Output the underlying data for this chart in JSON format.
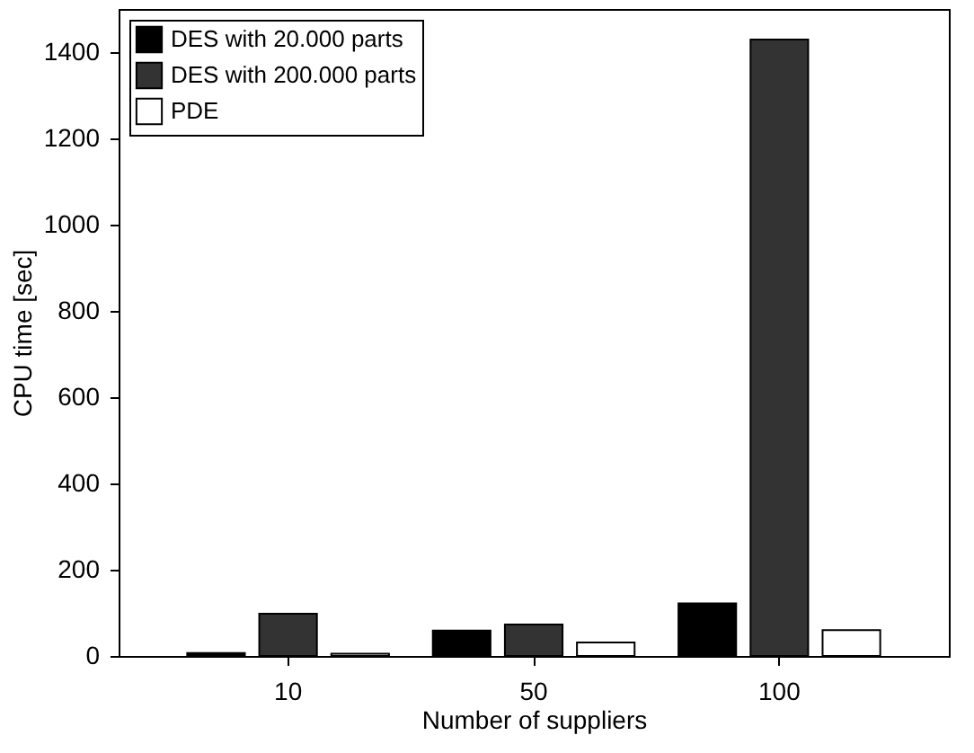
{
  "chart_data": {
    "type": "bar",
    "xlabel": "Number of suppliers",
    "ylabel": "CPU time [sec]",
    "categories": [
      "10",
      "50",
      "100"
    ],
    "series": [
      {
        "name": "DES with 20.000 parts",
        "color": "#000000",
        "values": [
          7,
          59,
          122
        ]
      },
      {
        "name": "DES with 200.000 parts",
        "color": "#333333",
        "values": [
          98,
          73,
          1429
        ]
      },
      {
        "name": "PDE",
        "color": "#ffffff",
        "values": [
          5,
          31,
          60
        ]
      }
    ],
    "ylim": [
      0,
      1500
    ],
    "yticks": [
      0,
      200,
      400,
      600,
      800,
      1000,
      1200,
      1400
    ],
    "grid": false,
    "legend": "top left"
  }
}
